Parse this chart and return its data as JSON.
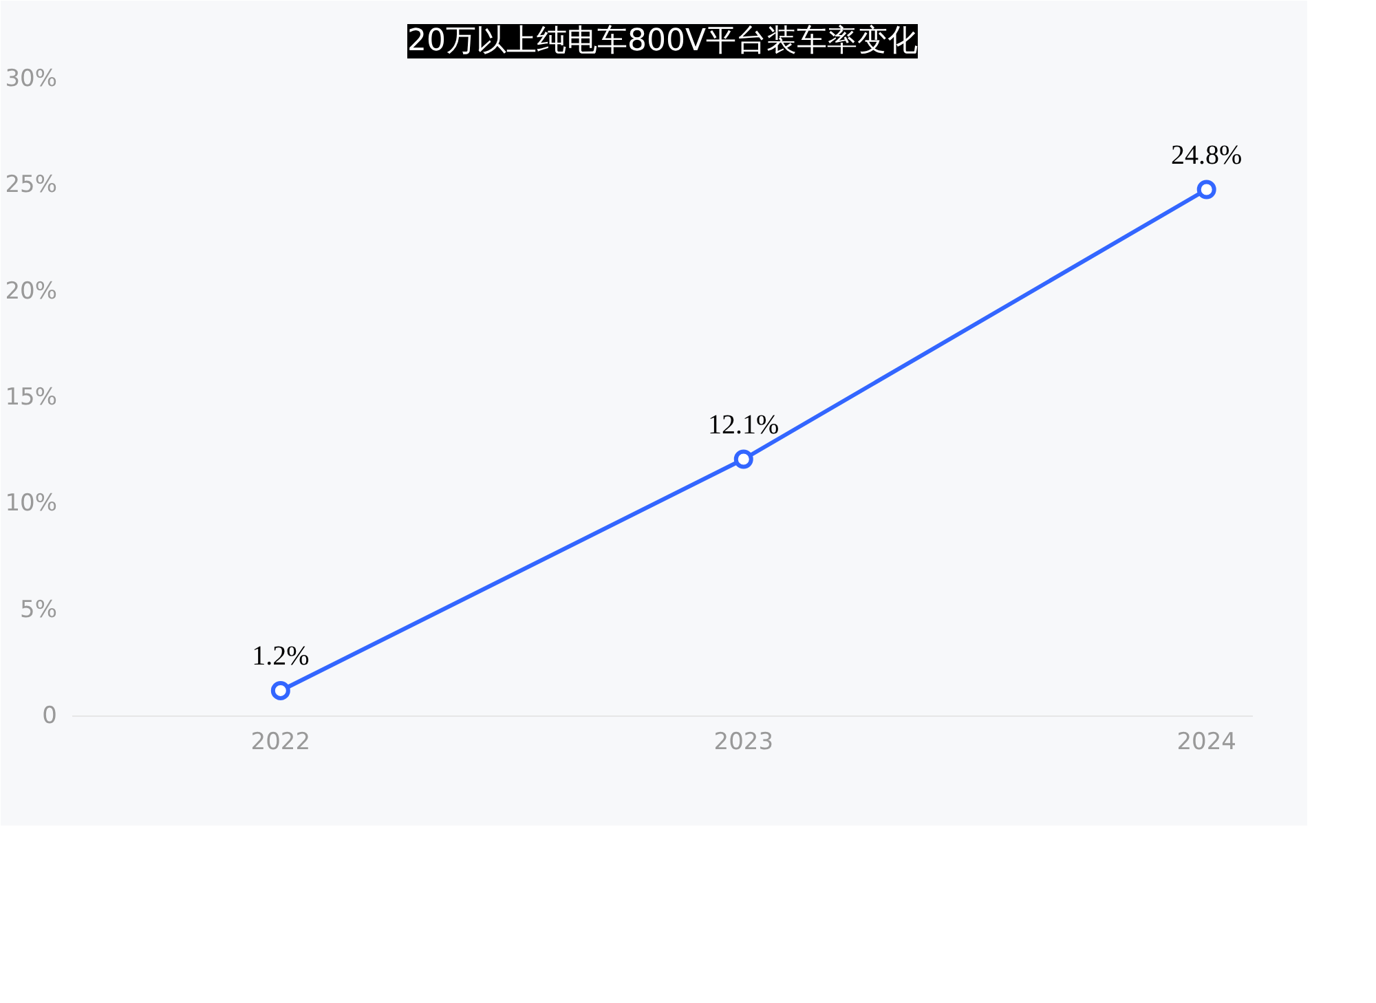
{
  "chart_data": {
    "type": "line",
    "title": "20万以上纯电车800V平台装车率变化",
    "categories": [
      "2022",
      "2023",
      "2024"
    ],
    "values": [
      1.2,
      12.1,
      24.8
    ],
    "value_labels": [
      "1.2%",
      "12.1%",
      "24.8%"
    ],
    "color": "#3366ff",
    "marker": "circle",
    "grid": false,
    "ylim": [
      0,
      30
    ],
    "yticks": [
      0,
      {
        "value": 5,
        "label": "5%"
      },
      {
        "value": 10,
        "label": "10%"
      },
      {
        "value": 15,
        "label": "15%"
      },
      {
        "value": 20,
        "label": "20%"
      },
      {
        "value": 25,
        "label": "25%"
      },
      {
        "value": 30,
        "label": "30%"
      }
    ]
  }
}
